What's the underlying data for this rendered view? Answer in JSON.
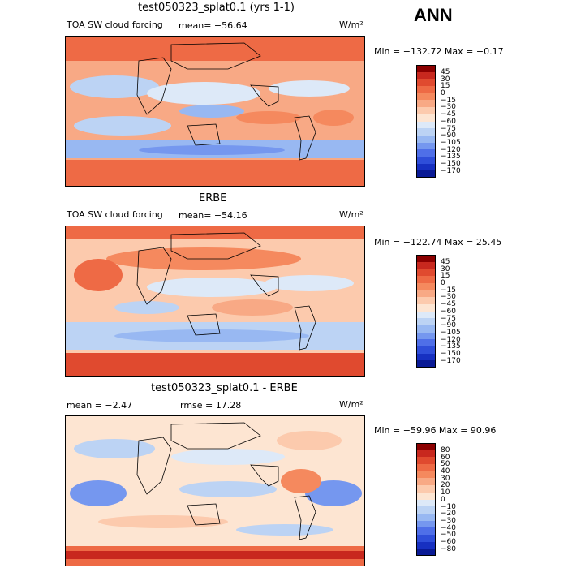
{
  "season": "ANN",
  "units": "W/m²",
  "panels": [
    {
      "title": "test050323_splat0.1 (yrs 1-1)",
      "variable": "TOA SW cloud forcing",
      "mean": "mean= −56.64",
      "minmax": "Min = −132.72 Max = −0.17",
      "levels": [
        "45",
        "30",
        "15",
        "0",
        "−15",
        "−30",
        "−45",
        "−60",
        "−75",
        "−90",
        "−105",
        "−120",
        "−135",
        "−150",
        "−170"
      ],
      "colors": [
        "#8b0000",
        "#c8281e",
        "#e04a2f",
        "#ee6a45",
        "#f5895e",
        "#f8a985",
        "#fccaad",
        "#fde5d2",
        "#dde9f8",
        "#bcd3f4",
        "#98b8f2",
        "#7597ef",
        "#4f6fe8",
        "#2f4ed9",
        "#1730c1",
        "#0a1a95"
      ]
    },
    {
      "title": "ERBE",
      "variable": "TOA SW cloud forcing",
      "mean": "mean= −54.16",
      "minmax": "Min = −122.74 Max =  25.45",
      "levels": [
        "45",
        "30",
        "15",
        "0",
        "−15",
        "−30",
        "−45",
        "−60",
        "−75",
        "−90",
        "−105",
        "−120",
        "−135",
        "−150",
        "−170"
      ],
      "colors": [
        "#8b0000",
        "#c8281e",
        "#e04a2f",
        "#ee6a45",
        "#f5895e",
        "#f8a985",
        "#fccaad",
        "#fde5d2",
        "#dde9f8",
        "#bcd3f4",
        "#98b8f2",
        "#7597ef",
        "#4f6fe8",
        "#2f4ed9",
        "#1730c1",
        "#0a1a95"
      ]
    },
    {
      "title": "test050323_splat0.1 - ERBE",
      "mean": "mean =   −2.47",
      "rmse": "rmse =  17.28",
      "minmax": "Min = −59.96 Max =  90.96",
      "levels": [
        "80",
        "60",
        "50",
        "40",
        "30",
        "20",
        "10",
        "0",
        "−10",
        "−20",
        "−30",
        "−40",
        "−50",
        "−60",
        "−80"
      ],
      "colors": [
        "#8b0000",
        "#c8281e",
        "#e04a2f",
        "#ee6a45",
        "#f5895e",
        "#f8a985",
        "#fccaad",
        "#fde5d2",
        "#dde9f8",
        "#bcd3f4",
        "#98b8f2",
        "#7597ef",
        "#4f6fe8",
        "#2f4ed9",
        "#1730c1",
        "#0a1a95"
      ]
    }
  ]
}
